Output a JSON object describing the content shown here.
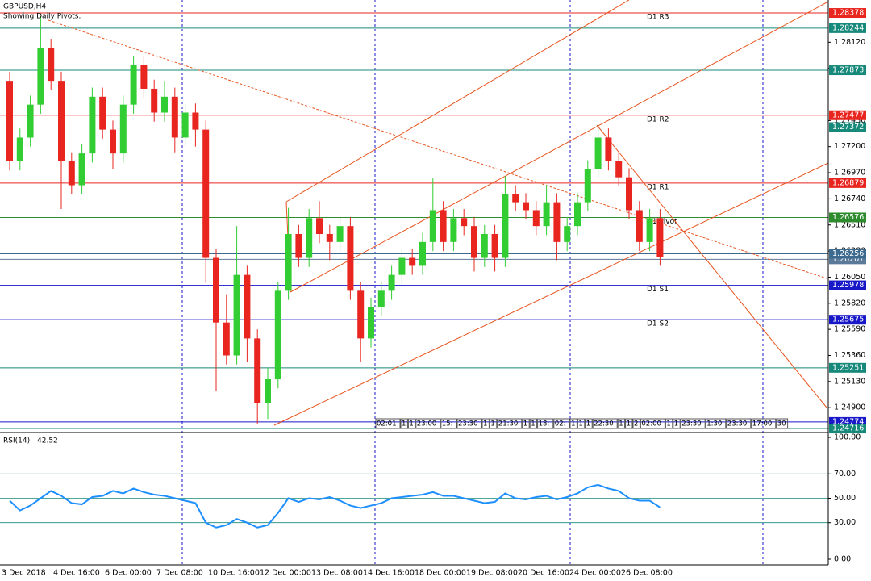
{
  "chart_data": [
    {
      "type": "candlestick",
      "title": "GBPUSD,H4",
      "subtitle": "Showing Daily Pivots.",
      "up_color": "#32cd32",
      "down_color": "#e8251f",
      "categories": [
        "3 Dec 2018",
        null,
        null,
        null,
        null,
        "4 Dec 16:00",
        null,
        null,
        null,
        null,
        "6 Dec 00:00",
        null,
        null,
        null,
        null,
        "7 Dec 08:00",
        null,
        null,
        null,
        null,
        "10 Dec 16:00",
        null,
        null,
        null,
        null,
        "12 Dec 00:00",
        null,
        null,
        null,
        null,
        "13 Dec 08:00",
        null,
        null,
        null,
        null,
        "14 Dec 16:00",
        null,
        null,
        null,
        null,
        "18 Dec 00:00",
        null,
        null,
        null,
        null,
        "19 Dec 08:00",
        null,
        null,
        null,
        null,
        "20 Dec 16:00",
        null,
        null,
        null,
        null,
        "24 Dec 00:00",
        null,
        null,
        null,
        null,
        "26 Dec 08:00",
        null,
        null,
        null
      ],
      "open": [
        1.2778,
        1.2707,
        1.2728,
        1.2757,
        1.2807,
        1.2778,
        1.2707,
        1.2686,
        1.2714,
        1.2764,
        1.2735,
        1.2714,
        1.2757,
        1.2792,
        1.2771,
        1.275,
        1.2764,
        1.2728,
        1.275,
        1.2735,
        1.2622,
        1.2565,
        1.2536,
        1.2607,
        1.2551,
        1.2494,
        1.2515,
        1.2593,
        1.2643,
        1.2622,
        1.2657,
        1.2643,
        1.2636,
        1.265,
        1.2593,
        1.2551,
        1.2579,
        1.2593,
        1.2607,
        1.2622,
        1.2615,
        1.2636,
        1.2664,
        1.2636,
        1.2657,
        1.265,
        1.2622,
        1.2643,
        1.2622,
        1.2678,
        1.2671,
        1.2664,
        1.265,
        1.2671,
        1.2636,
        1.265,
        1.2671,
        1.27,
        1.2728,
        1.2707,
        1.2693,
        1.2664,
        1.2636,
        1.2657
      ],
      "high": [
        1.2786,
        1.2736,
        1.2765,
        1.2835,
        1.2815,
        1.2786,
        1.2715,
        1.2722,
        1.2772,
        1.2772,
        1.2743,
        1.2765,
        1.28,
        1.28,
        1.2779,
        1.2778,
        1.2772,
        1.2758,
        1.2758,
        1.2743,
        1.263,
        1.259,
        1.265,
        1.2615,
        1.2559,
        1.2525,
        1.2601,
        1.2666,
        1.2651,
        1.2665,
        1.2672,
        1.2651,
        1.2658,
        1.2658,
        1.2601,
        1.2587,
        1.2601,
        1.2615,
        1.263,
        1.263,
        1.2644,
        1.2692,
        1.2672,
        1.2665,
        1.2665,
        1.2658,
        1.2651,
        1.2651,
        1.2694,
        1.2686,
        1.2679,
        1.2672,
        1.2686,
        1.2679,
        1.2658,
        1.2679,
        1.2708,
        1.274,
        1.2736,
        1.2715,
        1.2701,
        1.2672,
        1.2665,
        1.2665
      ],
      "low": [
        1.2699,
        1.2699,
        1.272,
        1.2749,
        1.277,
        1.2665,
        1.2678,
        1.2678,
        1.2706,
        1.2727,
        1.27,
        1.2706,
        1.2749,
        1.2763,
        1.2742,
        1.2742,
        1.2715,
        1.272,
        1.272,
        1.26,
        1.2505,
        1.2528,
        1.2528,
        1.253,
        1.2476,
        1.248,
        1.2507,
        1.2585,
        1.2614,
        1.2614,
        1.2635,
        1.262,
        1.2628,
        1.2585,
        1.253,
        1.2543,
        1.2571,
        1.2585,
        1.2599,
        1.2607,
        1.2607,
        1.2628,
        1.2628,
        1.2628,
        1.2642,
        1.261,
        1.2614,
        1.261,
        1.2614,
        1.2663,
        1.2656,
        1.2642,
        1.2642,
        1.262,
        1.2628,
        1.2642,
        1.2663,
        1.2692,
        1.2699,
        1.2685,
        1.2656,
        1.2628,
        1.2628,
        1.2615
      ],
      "close": [
        1.2707,
        1.2728,
        1.2757,
        1.2807,
        1.2778,
        1.2707,
        1.2686,
        1.2714,
        1.2764,
        1.2735,
        1.2714,
        1.2757,
        1.2792,
        1.2771,
        1.275,
        1.2764,
        1.2728,
        1.275,
        1.2735,
        1.2622,
        1.2565,
        1.2536,
        1.2607,
        1.2551,
        1.2494,
        1.2515,
        1.2593,
        1.2643,
        1.2622,
        1.2657,
        1.2643,
        1.2636,
        1.265,
        1.2593,
        1.2551,
        1.2579,
        1.2593,
        1.2607,
        1.2622,
        1.2615,
        1.2636,
        1.2664,
        1.2636,
        1.2657,
        1.265,
        1.2622,
        1.2643,
        1.2622,
        1.2678,
        1.2671,
        1.2664,
        1.265,
        1.2671,
        1.2636,
        1.265,
        1.2671,
        1.27,
        1.2728,
        1.2707,
        1.2693,
        1.2664,
        1.2636,
        1.2657,
        1.2623
      ],
      "ylim": [
        1.24688,
        1.28492
      ],
      "yticks": [
        {
          "value": 1.2812,
          "label": "1.28120"
        },
        {
          "value": 1.2789,
          "label": "1.27890"
        },
        {
          "value": 1.2743,
          "label": "1.27430"
        },
        {
          "value": 1.272,
          "label": "1.27200"
        },
        {
          "value": 1.2697,
          "label": "1.26970"
        },
        {
          "value": 1.2674,
          "label": "1.26740"
        },
        {
          "value": 1.2651,
          "label": "1.26510"
        },
        {
          "value": 1.2628,
          "label": "1.26280"
        },
        {
          "value": 1.2605,
          "label": "1.26050"
        },
        {
          "value": 1.2582,
          "label": "1.25820"
        },
        {
          "value": 1.2559,
          "label": "1.25590"
        },
        {
          "value": 1.2536,
          "label": "1.25360"
        },
        {
          "value": 1.2513,
          "label": "1.25130"
        },
        {
          "value": 1.249,
          "label": "1.24900"
        }
      ],
      "levels": [
        {
          "value": 1.28378,
          "name": "D1 R3",
          "color": "#e8251f"
        },
        {
          "value": 1.28244,
          "color": "#17897a"
        },
        {
          "value": 1.27873,
          "color": "#17897a"
        },
        {
          "value": 1.27477,
          "name": "D1 R2",
          "color": "#e8251f"
        },
        {
          "value": 1.27372,
          "color": "#17897a"
        },
        {
          "value": 1.26879,
          "name": "D1 R1",
          "color": "#e8251f"
        },
        {
          "value": 1.26576,
          "name": "D1 Pivot",
          "color": "#2e8b2e"
        },
        {
          "value": 1.26207,
          "color": "#5b7a99"
        },
        {
          "value": 1.26256,
          "color": "#3d6a8f"
        },
        {
          "value": 1.25978,
          "name": "D1 S1",
          "color": "#1818c8"
        },
        {
          "value": 1.25675,
          "name": "D1 S2",
          "color": "#1818c8"
        },
        {
          "value": 1.25251,
          "color": "#17897a"
        },
        {
          "value": 1.24774,
          "color": "#1818c8"
        },
        {
          "value": 1.24716,
          "color": "#17897a"
        }
      ],
      "time_markers": [
        "02:01",
        "1",
        "1",
        "23:00",
        "15:",
        "23:30",
        "1",
        "1",
        "21:30",
        "1",
        "1",
        "18:",
        "02:",
        "1",
        "1",
        "1",
        "22:30",
        "1",
        "1",
        "2",
        "02:00",
        "1",
        "1",
        "23:30",
        "1:30",
        "23:30",
        "17:00",
        "30"
      ]
    },
    {
      "type": "line",
      "title": "RSI(14)",
      "color": "#1e8fff",
      "values": [
        48,
        40,
        44,
        50,
        56,
        52,
        46,
        45,
        51,
        52,
        56,
        54,
        58,
        55,
        53,
        52,
        50,
        48,
        46,
        30,
        26,
        28,
        33,
        30,
        26,
        28,
        38,
        50,
        47,
        50,
        49,
        51,
        48,
        44,
        42,
        44,
        46,
        50,
        51,
        52,
        53,
        55,
        52,
        52,
        50,
        48,
        46,
        47,
        54,
        50,
        49,
        51,
        52,
        49,
        51,
        54,
        59,
        61,
        58,
        56,
        50,
        48,
        48,
        42.52
      ],
      "ylim": [
        0,
        100
      ],
      "yticks": [
        {
          "value": 100,
          "label": "100.00"
        },
        {
          "value": 70,
          "label": "70.00"
        },
        {
          "value": 50,
          "label": "50.00"
        },
        {
          "value": 30,
          "label": "30.00"
        },
        {
          "value": 0,
          "label": "0.00"
        }
      ],
      "levels": [
        70,
        50,
        30
      ]
    }
  ]
}
